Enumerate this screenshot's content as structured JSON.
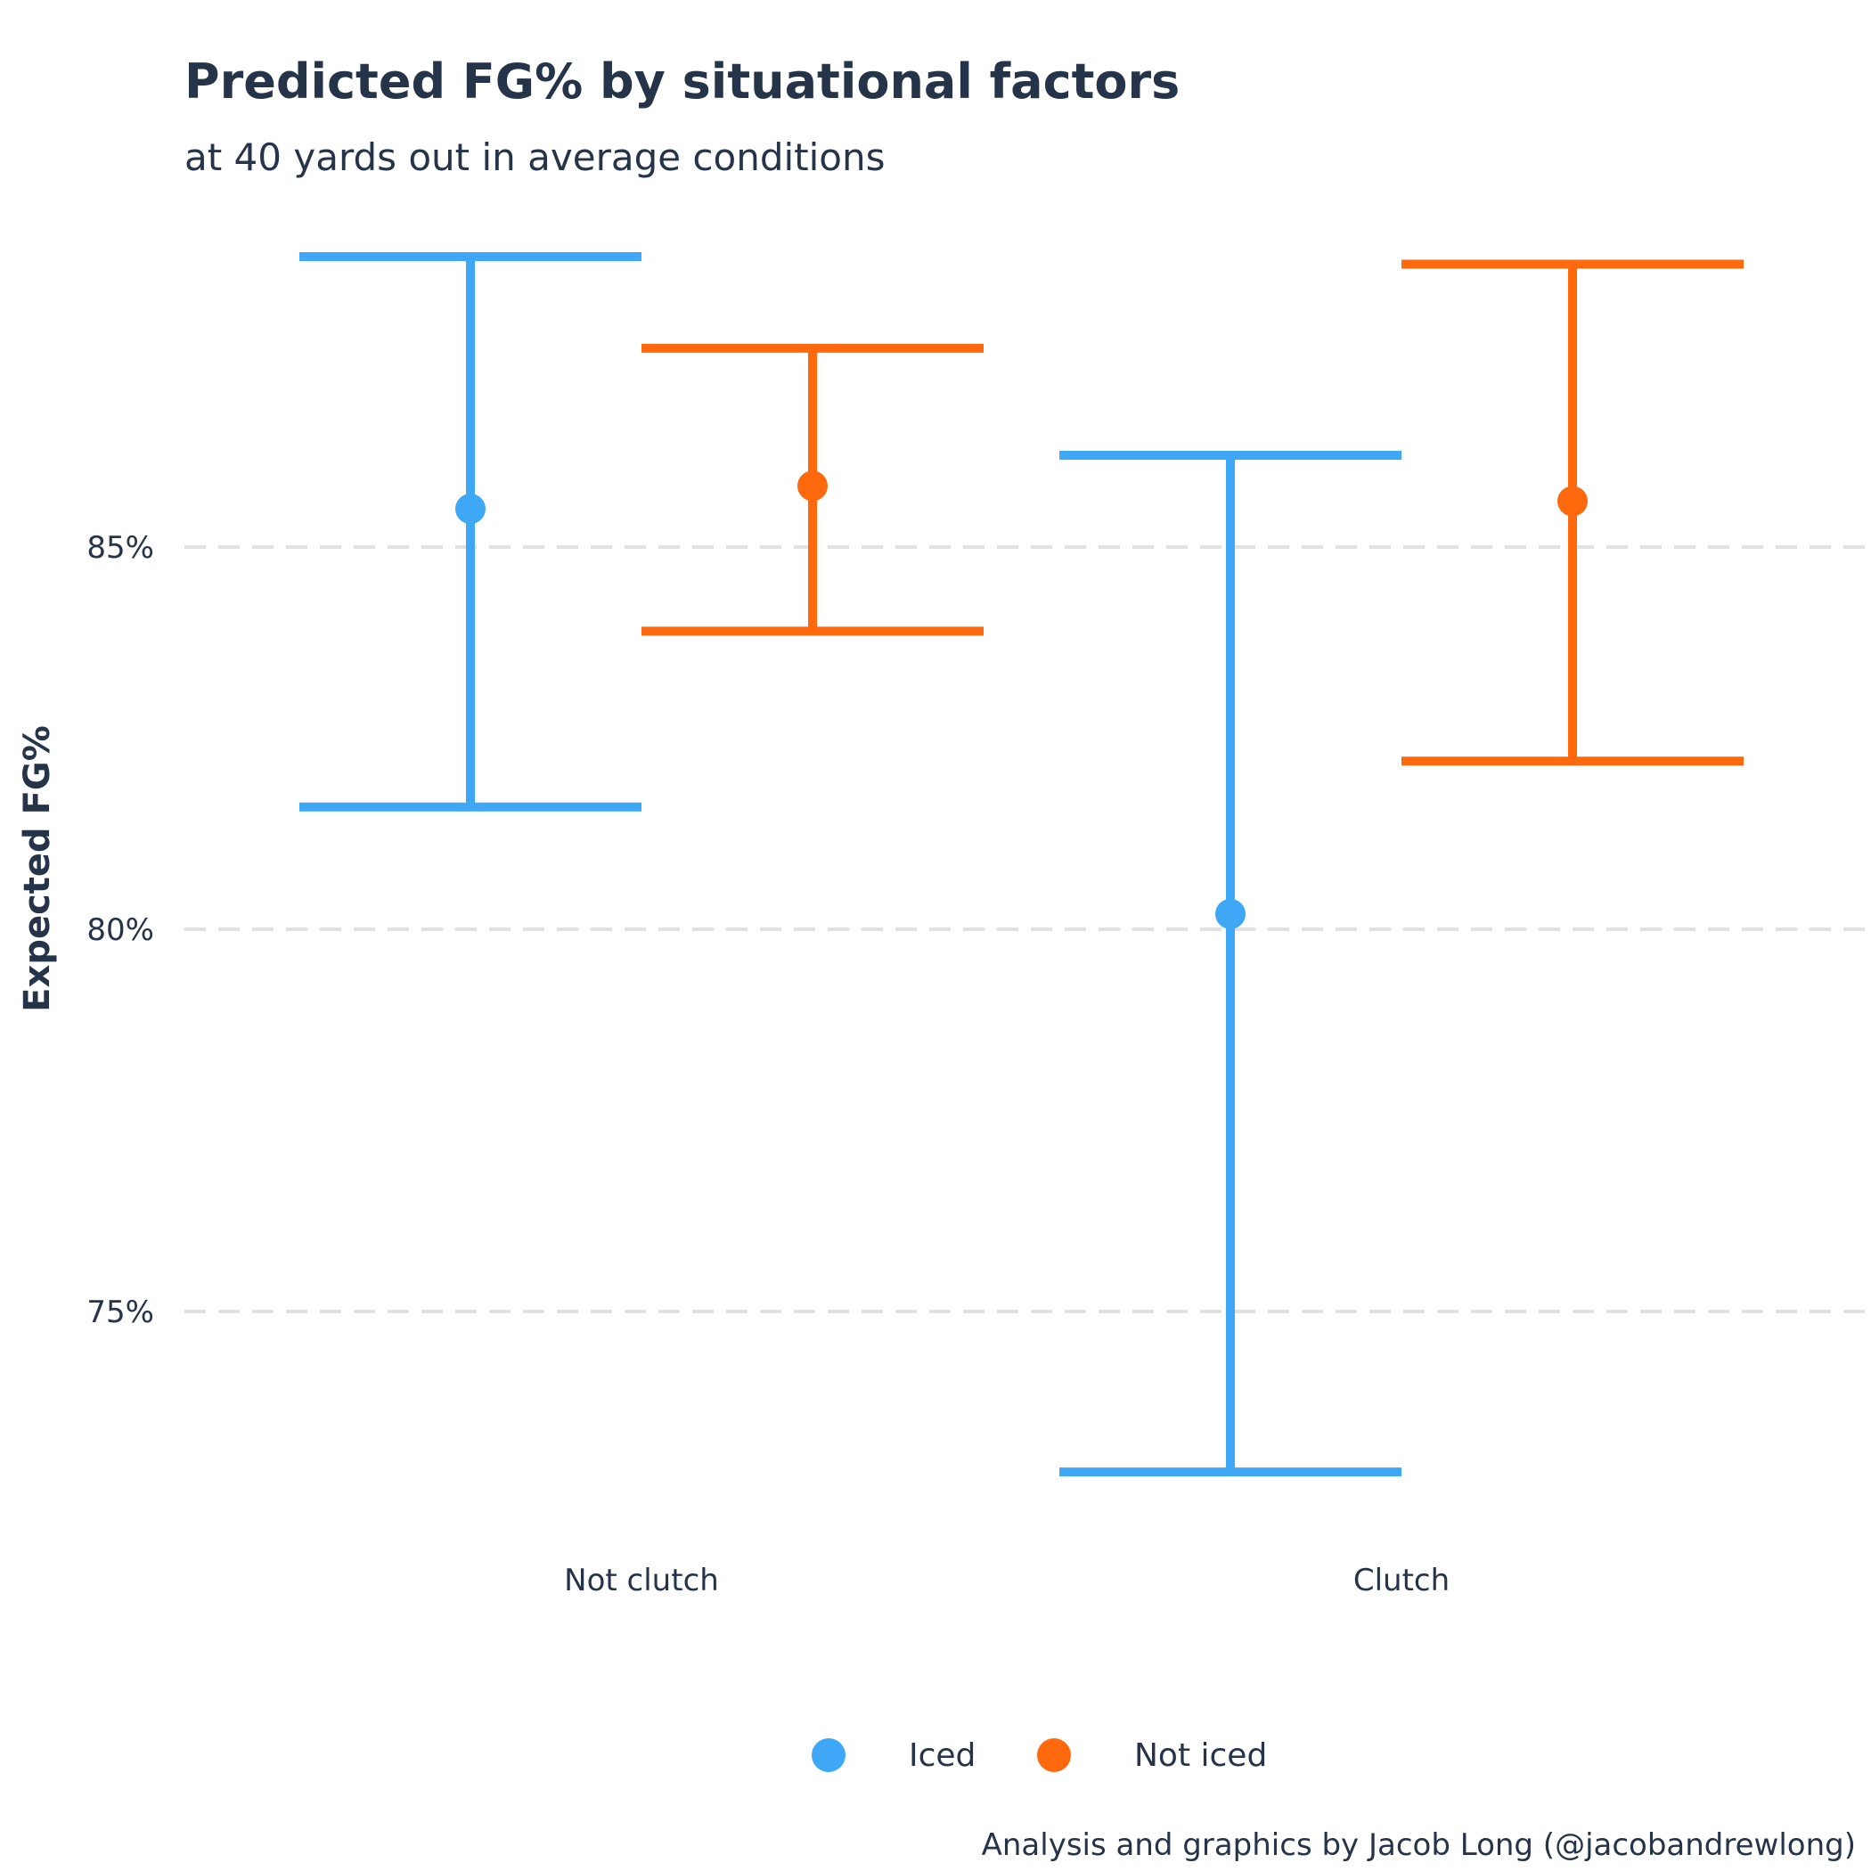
{
  "chart_data": {
    "type": "errorbar",
    "title": "Predicted FG% by situational factors",
    "subtitle": "at 40 yards out in average conditions",
    "ylabel": "Expected FG%",
    "xlabel": "",
    "ylim": [
      72.6,
      88.9
    ],
    "yticks": [
      75,
      80,
      85
    ],
    "ytick_labels": [
      "75%",
      "80%",
      "85%"
    ],
    "grid": "horizontal dashed",
    "legend_position": "bottom",
    "categories": [
      "Not clutch",
      "Clutch"
    ],
    "series": [
      {
        "name": "Iced",
        "color": "#3ea8f7",
        "values": [
          85.5,
          80.2
        ],
        "lower": [
          81.6,
          72.9
        ],
        "upper": [
          88.8,
          86.2
        ]
      },
      {
        "name": "Not iced",
        "color": "#ff690e",
        "values": [
          85.8,
          85.6
        ],
        "lower": [
          83.9,
          82.2
        ],
        "upper": [
          87.6,
          88.7
        ]
      }
    ],
    "caption": "Analysis and graphics by Jacob Long (@jacobandrewlong)"
  }
}
